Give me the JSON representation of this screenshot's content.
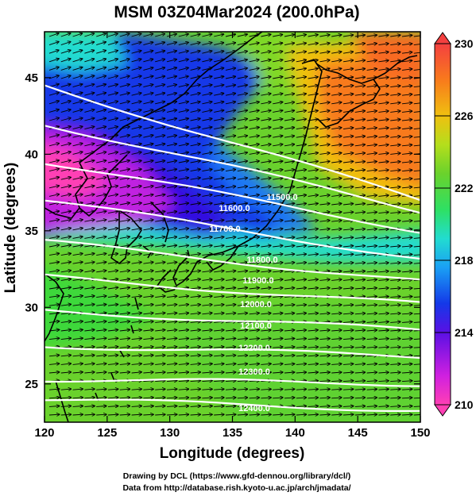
{
  "title": "MSM 03Z04Mar2024 (200.0hPa)",
  "axes": {
    "xlabel": "Longitude (degrees)",
    "ylabel": "Latitude  (degrees)",
    "xlim": [
      120,
      150
    ],
    "ylim": [
      22.5,
      48
    ],
    "xticks": [
      "120",
      "125",
      "130",
      "135",
      "140",
      "145",
      "150"
    ],
    "yticks": [
      "25",
      "30",
      "35",
      "40",
      "45"
    ]
  },
  "colorbar": {
    "min": 210,
    "max": 230,
    "tick_labels": [
      "230",
      "226",
      "222",
      "218",
      "214",
      "210"
    ],
    "colors": {
      "210": "#ff3fb4",
      "211": "#e61cd6",
      "212": "#8a00e6",
      "213": "#3010e0",
      "214": "#1030e6",
      "215": "#1a78f4",
      "216": "#1fb0f4",
      "217": "#22d4ea",
      "218": "#22e0a8",
      "219": "#2ee064",
      "220": "#3ed83a",
      "221": "#5ed230",
      "222": "#80d828",
      "223": "#a8dc20",
      "224": "#c8e018",
      "225": "#e0d410",
      "226": "#f0b010",
      "227": "#f89018",
      "228": "#f86a20",
      "229": "#f84a28",
      "230": "#f44040"
    }
  },
  "contours": [
    {
      "label": "11500.0",
      "lat_start": 44.5,
      "lat_end": 37.0
    },
    {
      "label": "11600.0",
      "lat_start": 42.0,
      "lat_end": 36.3
    },
    {
      "label": "11700.0",
      "lat_start": 39.5,
      "lat_end": 35.0
    },
    {
      "label": "11800.0",
      "lat_start": 37.0,
      "lat_end": 33.2
    },
    {
      "label": "11900.0",
      "lat_start": 34.3,
      "lat_end": 31.7
    },
    {
      "label": "12000.0",
      "lat_start": 32.0,
      "lat_end": 30.2
    },
    {
      "label": "12100.0",
      "lat_start": 29.8,
      "lat_end": 28.5
    },
    {
      "label": "12200.0",
      "lat_start": 27.5,
      "lat_end": 26.8
    },
    {
      "label": "12300.0",
      "lat_start": 25.3,
      "lat_end": 25.0
    },
    {
      "label": "12400.0",
      "lat_start": 24.0,
      "lat_end": 23.3
    }
  ],
  "credit_lines": [
    "Drawing by DCL (https://www.gfd-dennou.org/library/dcl/)",
    "Data from http://database.rish.kyoto-u.ac.jp/arch/jmadata/"
  ]
}
